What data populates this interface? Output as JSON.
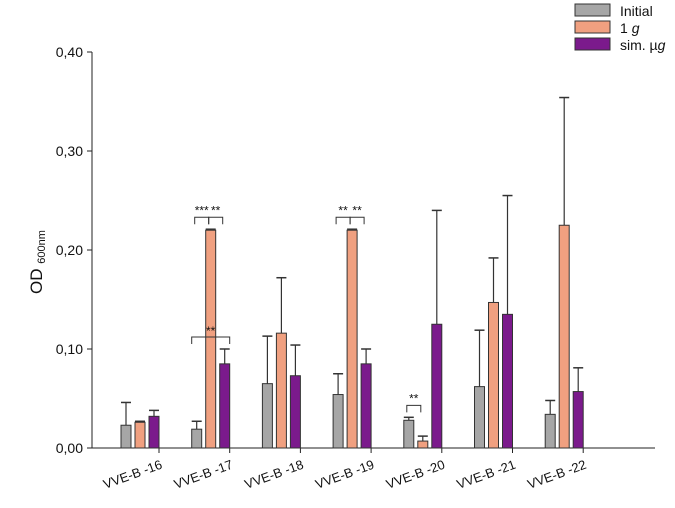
{
  "chart_data": {
    "type": "bar",
    "title": "",
    "xlabel": "",
    "ylabel": "OD",
    "ylabel_sub": "600nm",
    "ylim": [
      0,
      0.4
    ],
    "yticks": [
      "0,00",
      "0,10",
      "0,20",
      "0,30",
      "0,40"
    ],
    "ytick_values": [
      0,
      0.1,
      0.2,
      0.3,
      0.4
    ],
    "categories": [
      "VVE-B -16",
      "VVE-B -17",
      "VVE-B -18",
      "VVE-B -19",
      "VVE-B -20",
      "VVE-B -21",
      "VVE-B -22"
    ],
    "legend_position": "top-right",
    "series": [
      {
        "name": "Initial",
        "name_main": "Initial",
        "name_italic": "",
        "color": "#a6a6a6",
        "values": [
          0.023,
          0.019,
          0.065,
          0.054,
          0.028,
          0.062,
          0.034
        ],
        "error": [
          0.023,
          0.008,
          0.048,
          0.021,
          0.003,
          0.057,
          0.014
        ]
      },
      {
        "name": "1 g",
        "name_main": "1 ",
        "name_italic": "g",
        "color": "#f0a080",
        "values": [
          0.026,
          0.22,
          0.116,
          0.22,
          0.007,
          0.147,
          0.225
        ],
        "error": [
          0.001,
          0.001,
          0.056,
          0.001,
          0.005,
          0.045,
          0.129
        ]
      },
      {
        "name": "sim. µg",
        "name_main": "sim. µ",
        "name_italic": "g",
        "color": "#7b1a8c",
        "values": [
          0.032,
          0.085,
          0.073,
          0.085,
          0.125,
          0.135,
          0.057
        ],
        "error": [
          0.006,
          0.015,
          0.031,
          0.015,
          0.115,
          0.12,
          0.024
        ]
      }
    ],
    "annotations": [
      {
        "group": 1,
        "from": 0,
        "to": 1,
        "label": "***",
        "level": 0.227
      },
      {
        "group": 1,
        "from": 1,
        "to": 2,
        "label": "**",
        "level": 0.227
      },
      {
        "group": 1,
        "from": 0,
        "to": 2,
        "label": "**",
        "level": 0.106
      },
      {
        "group": 3,
        "from": 0,
        "to": 1,
        "label": "**",
        "level": 0.227
      },
      {
        "group": 3,
        "from": 1,
        "to": 2,
        "label": "**",
        "level": 0.227
      },
      {
        "group": 4,
        "from": 0,
        "to": 1,
        "label": "**",
        "level": 0.037
      }
    ]
  }
}
